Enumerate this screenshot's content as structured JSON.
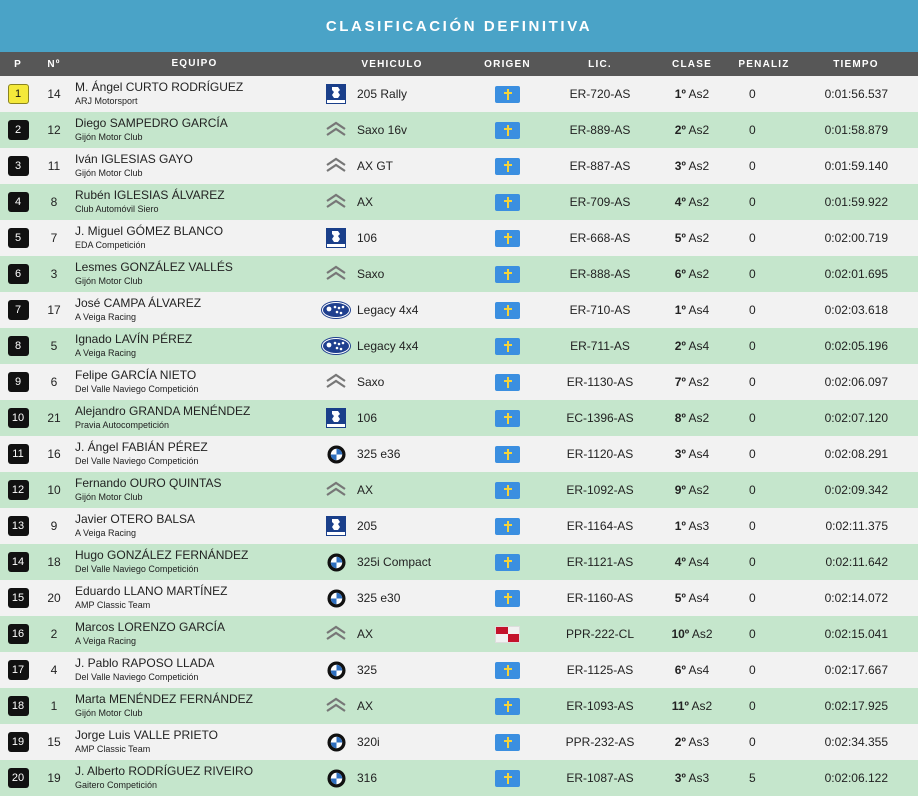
{
  "title": "CLASIFICACIÓN DEFINITIVA",
  "headers": {
    "pos": "P",
    "num": "Nº",
    "team": "EQUIPO",
    "vehicle": "VEHICULO",
    "origin": "ORIGEN",
    "lic": "LIC.",
    "clase": "CLASE",
    "penalty": "PENALIZ",
    "time": "TIEMPO"
  },
  "colors": {
    "banner": "#4aa3c7",
    "header": "#575757",
    "row_odd": "#f2f2f2",
    "row_even": "#c5e6cc",
    "first_badge": "#f4e93a",
    "asturias_flag": "#3b8fe0"
  },
  "rows": [
    {
      "pos": "1",
      "num": "14",
      "driver": "M. Ángel CURTO RODRÍGUEZ",
      "club": "ARJ Motorsport",
      "brand": "peugeot-logo",
      "vehicle": "205 Rally",
      "origin": "asturias-flag",
      "lic": "ER-720-AS",
      "class_pos": "1º",
      "class_name": "As2",
      "penalty": "0",
      "time": "0:01:56.537"
    },
    {
      "pos": "2",
      "num": "12",
      "driver": "Diego SAMPEDRO GARCÍA",
      "club": "Gijón Motor Club",
      "brand": "citroen-logo",
      "vehicle": "Saxo 16v",
      "origin": "asturias-flag",
      "lic": "ER-889-AS",
      "class_pos": "2º",
      "class_name": "As2",
      "penalty": "0",
      "time": "0:01:58.879"
    },
    {
      "pos": "3",
      "num": "11",
      "driver": "Iván IGLESIAS GAYO",
      "club": "Gijón Motor Club",
      "brand": "citroen-logo",
      "vehicle": "AX GT",
      "origin": "asturias-flag",
      "lic": "ER-887-AS",
      "class_pos": "3º",
      "class_name": "As2",
      "penalty": "0",
      "time": "0:01:59.140"
    },
    {
      "pos": "4",
      "num": "8",
      "driver": "Rubén IGLESIAS ÁLVAREZ",
      "club": "Club Automóvil Siero",
      "brand": "citroen-logo",
      "vehicle": "AX",
      "origin": "asturias-flag",
      "lic": "ER-709-AS",
      "class_pos": "4º",
      "class_name": "As2",
      "penalty": "0",
      "time": "0:01:59.922"
    },
    {
      "pos": "5",
      "num": "7",
      "driver": "J. Miguel GÓMEZ BLANCO",
      "club": "EDA Competición",
      "brand": "peugeot-logo",
      "vehicle": "106",
      "origin": "asturias-flag",
      "lic": "ER-668-AS",
      "class_pos": "5º",
      "class_name": "As2",
      "penalty": "0",
      "time": "0:02:00.719"
    },
    {
      "pos": "6",
      "num": "3",
      "driver": "Lesmes GONZÁLEZ VALLÉS",
      "club": "Gijón Motor Club",
      "brand": "citroen-logo",
      "vehicle": "Saxo",
      "origin": "asturias-flag",
      "lic": "ER-888-AS",
      "class_pos": "6º",
      "class_name": "As2",
      "penalty": "0",
      "time": "0:02:01.695"
    },
    {
      "pos": "7",
      "num": "17",
      "driver": "José CAMPA ÁLVAREZ",
      "club": "A Veiga Racing",
      "brand": "subaru-logo",
      "vehicle": "Legacy 4x4",
      "origin": "asturias-flag",
      "lic": "ER-710-AS",
      "class_pos": "1º",
      "class_name": "As4",
      "penalty": "0",
      "time": "0:02:03.618"
    },
    {
      "pos": "8",
      "num": "5",
      "driver": "Ignado LAVÍN PÉREZ",
      "club": "A Veiga Racing",
      "brand": "subaru-logo",
      "vehicle": "Legacy 4x4",
      "origin": "asturias-flag",
      "lic": "ER-711-AS",
      "class_pos": "2º",
      "class_name": "As4",
      "penalty": "0",
      "time": "0:02:05.196"
    },
    {
      "pos": "9",
      "num": "6",
      "driver": "Felipe GARCÍA NIETO",
      "club": "Del Valle Naviego Competición",
      "brand": "citroen-logo",
      "vehicle": "Saxo",
      "origin": "asturias-flag",
      "lic": "ER-1130-AS",
      "class_pos": "7º",
      "class_name": "As2",
      "penalty": "0",
      "time": "0:02:06.097"
    },
    {
      "pos": "10",
      "num": "21",
      "driver": "Alejandro GRANDA MENÉNDEZ",
      "club": "Pravia Autocompetición",
      "brand": "peugeot-logo",
      "vehicle": "106",
      "origin": "asturias-flag",
      "lic": "EC-1396-AS",
      "class_pos": "8º",
      "class_name": "As2",
      "penalty": "0",
      "time": "0:02:07.120"
    },
    {
      "pos": "11",
      "num": "16",
      "driver": "J. Ángel FABIÁN PÉREZ",
      "club": "Del Valle Naviego Competición",
      "brand": "bmw-logo",
      "vehicle": "325 e36",
      "origin": "asturias-flag",
      "lic": "ER-1120-AS",
      "class_pos": "3º",
      "class_name": "As4",
      "penalty": "0",
      "time": "0:02:08.291"
    },
    {
      "pos": "12",
      "num": "10",
      "driver": "Fernando OURO QUINTAS",
      "club": "Gijón Motor Club",
      "brand": "citroen-logo",
      "vehicle": "AX",
      "origin": "asturias-flag",
      "lic": "ER-1092-AS",
      "class_pos": "9º",
      "class_name": "As2",
      "penalty": "0",
      "time": "0:02:09.342"
    },
    {
      "pos": "13",
      "num": "9",
      "driver": "Javier OTERO BALSA",
      "club": "A Veiga Racing",
      "brand": "peugeot-logo",
      "vehicle": "205",
      "origin": "asturias-flag",
      "lic": "ER-1164-AS",
      "class_pos": "1º",
      "class_name": "As3",
      "penalty": "0",
      "time": "0:02:11.375"
    },
    {
      "pos": "14",
      "num": "18",
      "driver": "Hugo GONZÁLEZ FERNÁNDEZ",
      "club": "Del Valle Naviego Competición",
      "brand": "bmw-logo",
      "vehicle": "325i Compact",
      "origin": "asturias-flag",
      "lic": "ER-1121-AS",
      "class_pos": "4º",
      "class_name": "As4",
      "penalty": "0",
      "time": "0:02:11.642"
    },
    {
      "pos": "15",
      "num": "20",
      "driver": "Eduardo LLANO MARTÍNEZ",
      "club": "AMP Classic Team",
      "brand": "bmw-logo",
      "vehicle": "325 e30",
      "origin": "asturias-flag",
      "lic": "ER-1160-AS",
      "class_pos": "5º",
      "class_name": "As4",
      "penalty": "0",
      "time": "0:02:14.072"
    },
    {
      "pos": "16",
      "num": "2",
      "driver": "Marcos LORENZO GARCÍA",
      "club": "A Veiga Racing",
      "brand": "citroen-logo",
      "vehicle": "AX",
      "origin": "castilla-leon-flag",
      "lic": "PPR-222-CL",
      "class_pos": "10º",
      "class_name": "As2",
      "penalty": "0",
      "time": "0:02:15.041"
    },
    {
      "pos": "17",
      "num": "4",
      "driver": "J. Pablo RAPOSO LLADA",
      "club": "Del Valle Naviego Competición",
      "brand": "bmw-logo",
      "vehicle": "325",
      "origin": "asturias-flag",
      "lic": "ER-1125-AS",
      "class_pos": "6º",
      "class_name": "As4",
      "penalty": "0",
      "time": "0:02:17.667"
    },
    {
      "pos": "18",
      "num": "1",
      "driver": "Marta MENÉNDEZ FERNÁNDEZ",
      "club": "Gijón Motor Club",
      "brand": "citroen-logo",
      "vehicle": "AX",
      "origin": "asturias-flag",
      "lic": "ER-1093-AS",
      "class_pos": "11º",
      "class_name": "As2",
      "penalty": "0",
      "time": "0:02:17.925"
    },
    {
      "pos": "19",
      "num": "15",
      "driver": "Jorge Luis VALLE PRIETO",
      "club": "AMP Classic Team",
      "brand": "bmw-logo",
      "vehicle": "320i",
      "origin": "asturias-flag",
      "lic": "PPR-232-AS",
      "class_pos": "2º",
      "class_name": "As3",
      "penalty": "0",
      "time": "0:02:34.355"
    },
    {
      "pos": "20",
      "num": "19",
      "driver": "J. Alberto RODRÍGUEZ RIVEIRO",
      "club": "Gaitero Competición",
      "brand": "bmw-logo",
      "vehicle": "316",
      "origin": "asturias-flag",
      "lic": "ER-1087-AS",
      "class_pos": "3º",
      "class_name": "As3",
      "penalty": "5",
      "time": "0:02:06.122"
    }
  ]
}
